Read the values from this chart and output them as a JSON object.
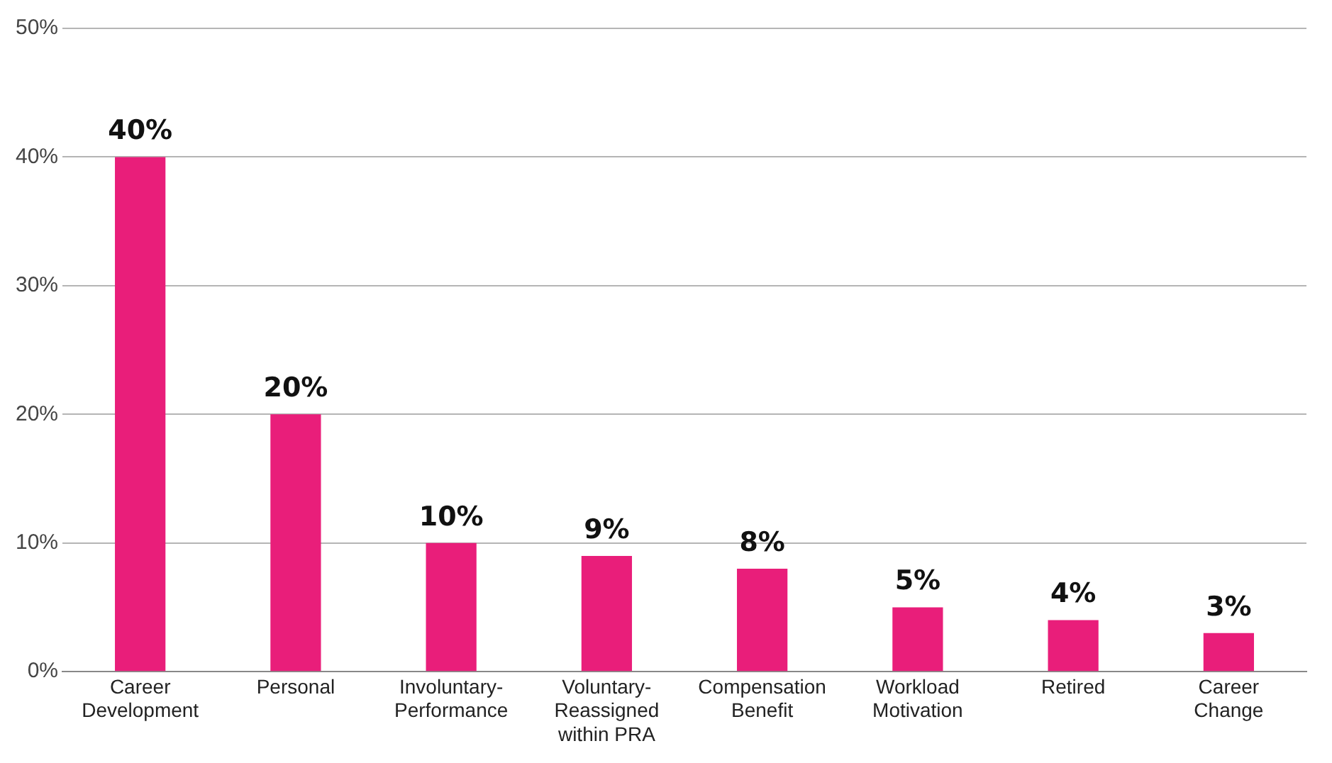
{
  "chart_data": {
    "type": "bar",
    "categories": [
      "Career Development",
      "Personal",
      "Involuntary-Performance",
      "Voluntary-Reassigned within PRA",
      "Compensation Benefit",
      "Workload Motivation",
      "Retired",
      "Career Change"
    ],
    "values": [
      40,
      20,
      10,
      9,
      8,
      5,
      4,
      3
    ],
    "color": "#e91e7a",
    "ylim": [
      0,
      50
    ],
    "yticks": [
      {
        "value": 0,
        "label": "0%"
      },
      {
        "value": 10,
        "label": "10%"
      },
      {
        "value": 20,
        "label": "20%"
      },
      {
        "value": 30,
        "label": "30%"
      },
      {
        "value": 40,
        "label": "40%"
      },
      {
        "value": 50,
        "label": "50%"
      }
    ],
    "grid": "y",
    "legend": false,
    "data_labels": true,
    "value_labels": [
      "40%",
      "20%",
      "10%",
      "9%",
      "8%",
      "5%",
      "4%",
      "3%"
    ]
  }
}
